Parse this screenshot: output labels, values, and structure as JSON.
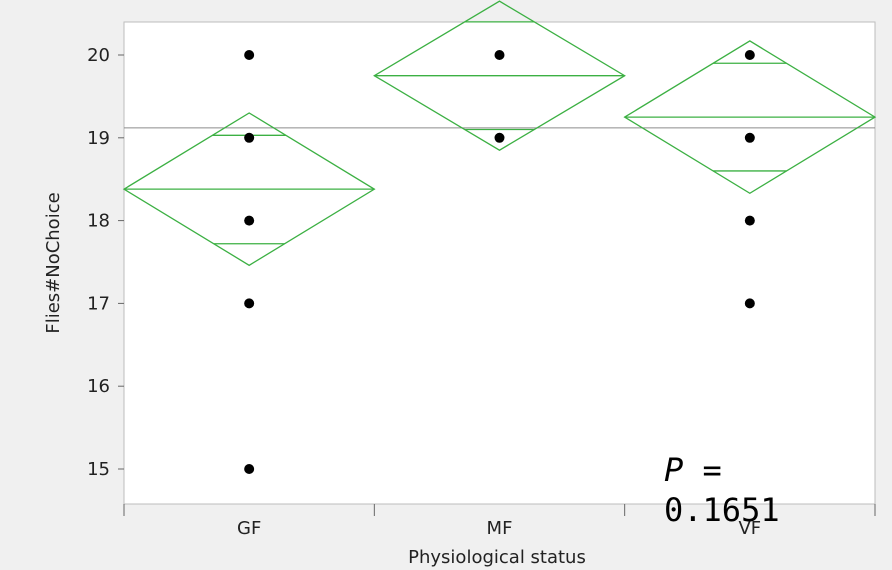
{
  "chart_data": {
    "type": "scatter",
    "title": "",
    "xlabel": "Physiological status",
    "ylabel": "Flies#NoChoice",
    "categories": [
      "GF",
      "MF",
      "VF"
    ],
    "ylim": [
      14.6,
      20.4
    ],
    "yticks": [
      15,
      16,
      17,
      18,
      19,
      20
    ],
    "grid": false,
    "legend": "none",
    "grand_mean": 19.12,
    "points": [
      {
        "group": "GF",
        "y": 20
      },
      {
        "group": "GF",
        "y": 19
      },
      {
        "group": "GF",
        "y": 18
      },
      {
        "group": "GF",
        "y": 17
      },
      {
        "group": "GF",
        "y": 15
      },
      {
        "group": "MF",
        "y": 20
      },
      {
        "group": "MF",
        "y": 19
      },
      {
        "group": "VF",
        "y": 20
      },
      {
        "group": "VF",
        "y": 19
      },
      {
        "group": "VF",
        "y": 18
      },
      {
        "group": "VF",
        "y": 17
      }
    ],
    "means_diamonds": [
      {
        "group": "GF",
        "mean": 18.38,
        "upper": 19.3,
        "lower": 17.46,
        "overlap_upper": 19.03,
        "overlap_lower": 17.72
      },
      {
        "group": "MF",
        "mean": 19.75,
        "upper": 20.65,
        "lower": 18.85,
        "overlap_upper": 20.4,
        "overlap_lower": 19.1
      },
      {
        "group": "VF",
        "mean": 19.25,
        "upper": 20.17,
        "lower": 18.33,
        "overlap_upper": 19.9,
        "overlap_lower": 18.6
      }
    ],
    "colors": {
      "diamond": "#3cb043",
      "points": "#000000",
      "grand_mean_line": "#8c8c8c",
      "plot_background": "#ffffff"
    }
  },
  "annotation": {
    "p_symbol": "P",
    "p_rest": " =\n0.1651"
  }
}
